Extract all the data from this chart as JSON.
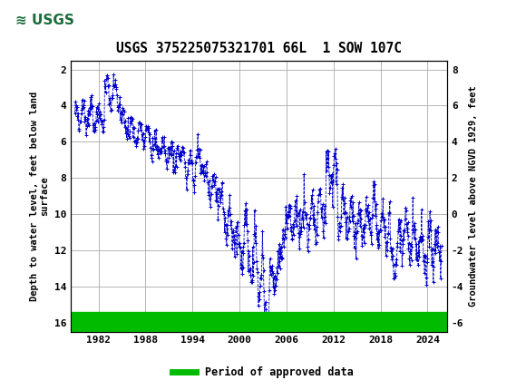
{
  "title": "USGS 375225075321701 66L  1 SOW 107C",
  "ylabel_left": "Depth to water level, feet below land\nsurface",
  "ylabel_right": "Groundwater level above NGVD 1929, feet",
  "ylim_left": [
    16.5,
    1.5
  ],
  "ylim_right": [
    -6.5,
    8.5
  ],
  "yticks_left": [
    2,
    4,
    6,
    8,
    10,
    12,
    14,
    16
  ],
  "yticks_right": [
    8,
    6,
    4,
    2,
    0,
    -2,
    -4,
    -6
  ],
  "xlim": [
    1978.5,
    2026.5
  ],
  "xticks": [
    1982,
    1988,
    1994,
    2000,
    2006,
    2012,
    2018,
    2024
  ],
  "header_color": "#1a6b3c",
  "line_color": "#0000cc",
  "marker_color": "#0000cc",
  "legend_label": "Period of approved data",
  "bg_color": "#ffffff",
  "plot_bg_color": "#ffffff",
  "grid_color": "#aaaaaa",
  "approved_bar_color": "#00bb00"
}
